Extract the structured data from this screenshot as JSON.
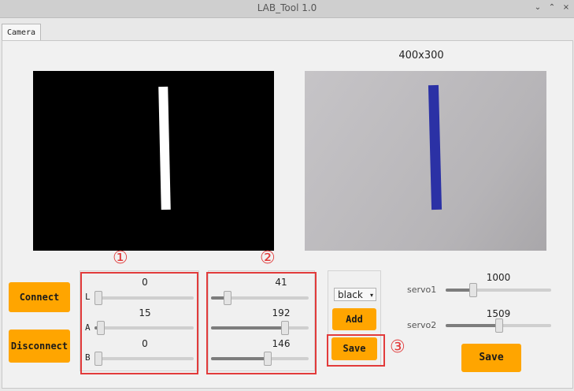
{
  "window": {
    "title": "LAB_Tool 1.0",
    "controls": [
      "⌄",
      "⌃",
      "×"
    ]
  },
  "tabs": [
    {
      "label": "Camera"
    }
  ],
  "camera": {
    "resolution": "400x300"
  },
  "buttons": {
    "connect": "Connect",
    "disconnect": "Disconnect",
    "add": "Add",
    "save_lab": "Save",
    "save_servo": "Save"
  },
  "lab_min": {
    "marker": "①",
    "sliders": [
      {
        "label": "L",
        "value": "0",
        "level": 0.0
      },
      {
        "label": "A",
        "value": "15",
        "level": 0.059
      },
      {
        "label": "B",
        "value": "0",
        "level": 0.0
      }
    ]
  },
  "lab_max": {
    "marker": "②",
    "sliders": [
      {
        "value": "41",
        "level": 0.161
      },
      {
        "value": "192",
        "level": 0.753
      },
      {
        "value": "146",
        "level": 0.573
      }
    ]
  },
  "color_select": {
    "selected": "black",
    "arrow": "▾"
  },
  "save_marker": "③",
  "servos": [
    {
      "label": "servo1",
      "value": "1000",
      "level": 0.25
    },
    {
      "label": "servo2",
      "value": "1509",
      "level": 0.5
    }
  ],
  "colors": {
    "accent": "#ffa500",
    "highlight": "#e23b3b",
    "target_stroke": "#2b31a5"
  }
}
